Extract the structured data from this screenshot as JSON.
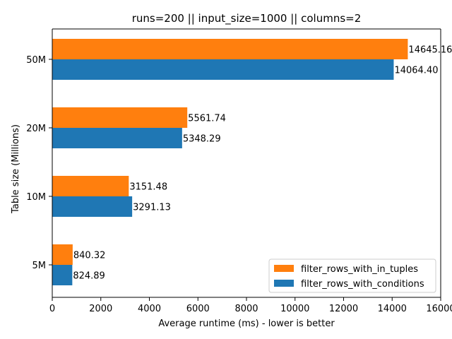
{
  "chart_data": {
    "type": "bar",
    "orientation": "horizontal",
    "title": "runs=200 || input_size=1000 || columns=2",
    "xlabel": "Average runtime (ms) - lower is better",
    "ylabel": "Table size (Millions)",
    "categories": [
      "5M",
      "10M",
      "20M",
      "50M"
    ],
    "xlim": [
      0,
      16000
    ],
    "xticks": [
      0,
      2000,
      4000,
      6000,
      8000,
      10000,
      12000,
      14000,
      16000
    ],
    "grid": false,
    "legend_position": "lower-right",
    "series": [
      {
        "name": "filter_rows_with_in_tuples",
        "color": "#ff7f0e",
        "values": [
          840.32,
          3151.48,
          5561.74,
          14645.16
        ],
        "labels": [
          "840.32",
          "3151.48",
          "5561.74",
          "14645.16"
        ]
      },
      {
        "name": "filter_rows_with_conditions",
        "color": "#1f77b4",
        "values": [
          824.89,
          3291.13,
          5348.29,
          14064.4
        ],
        "labels": [
          "824.89",
          "3291.13",
          "5348.29",
          "14064.40"
        ]
      }
    ]
  }
}
